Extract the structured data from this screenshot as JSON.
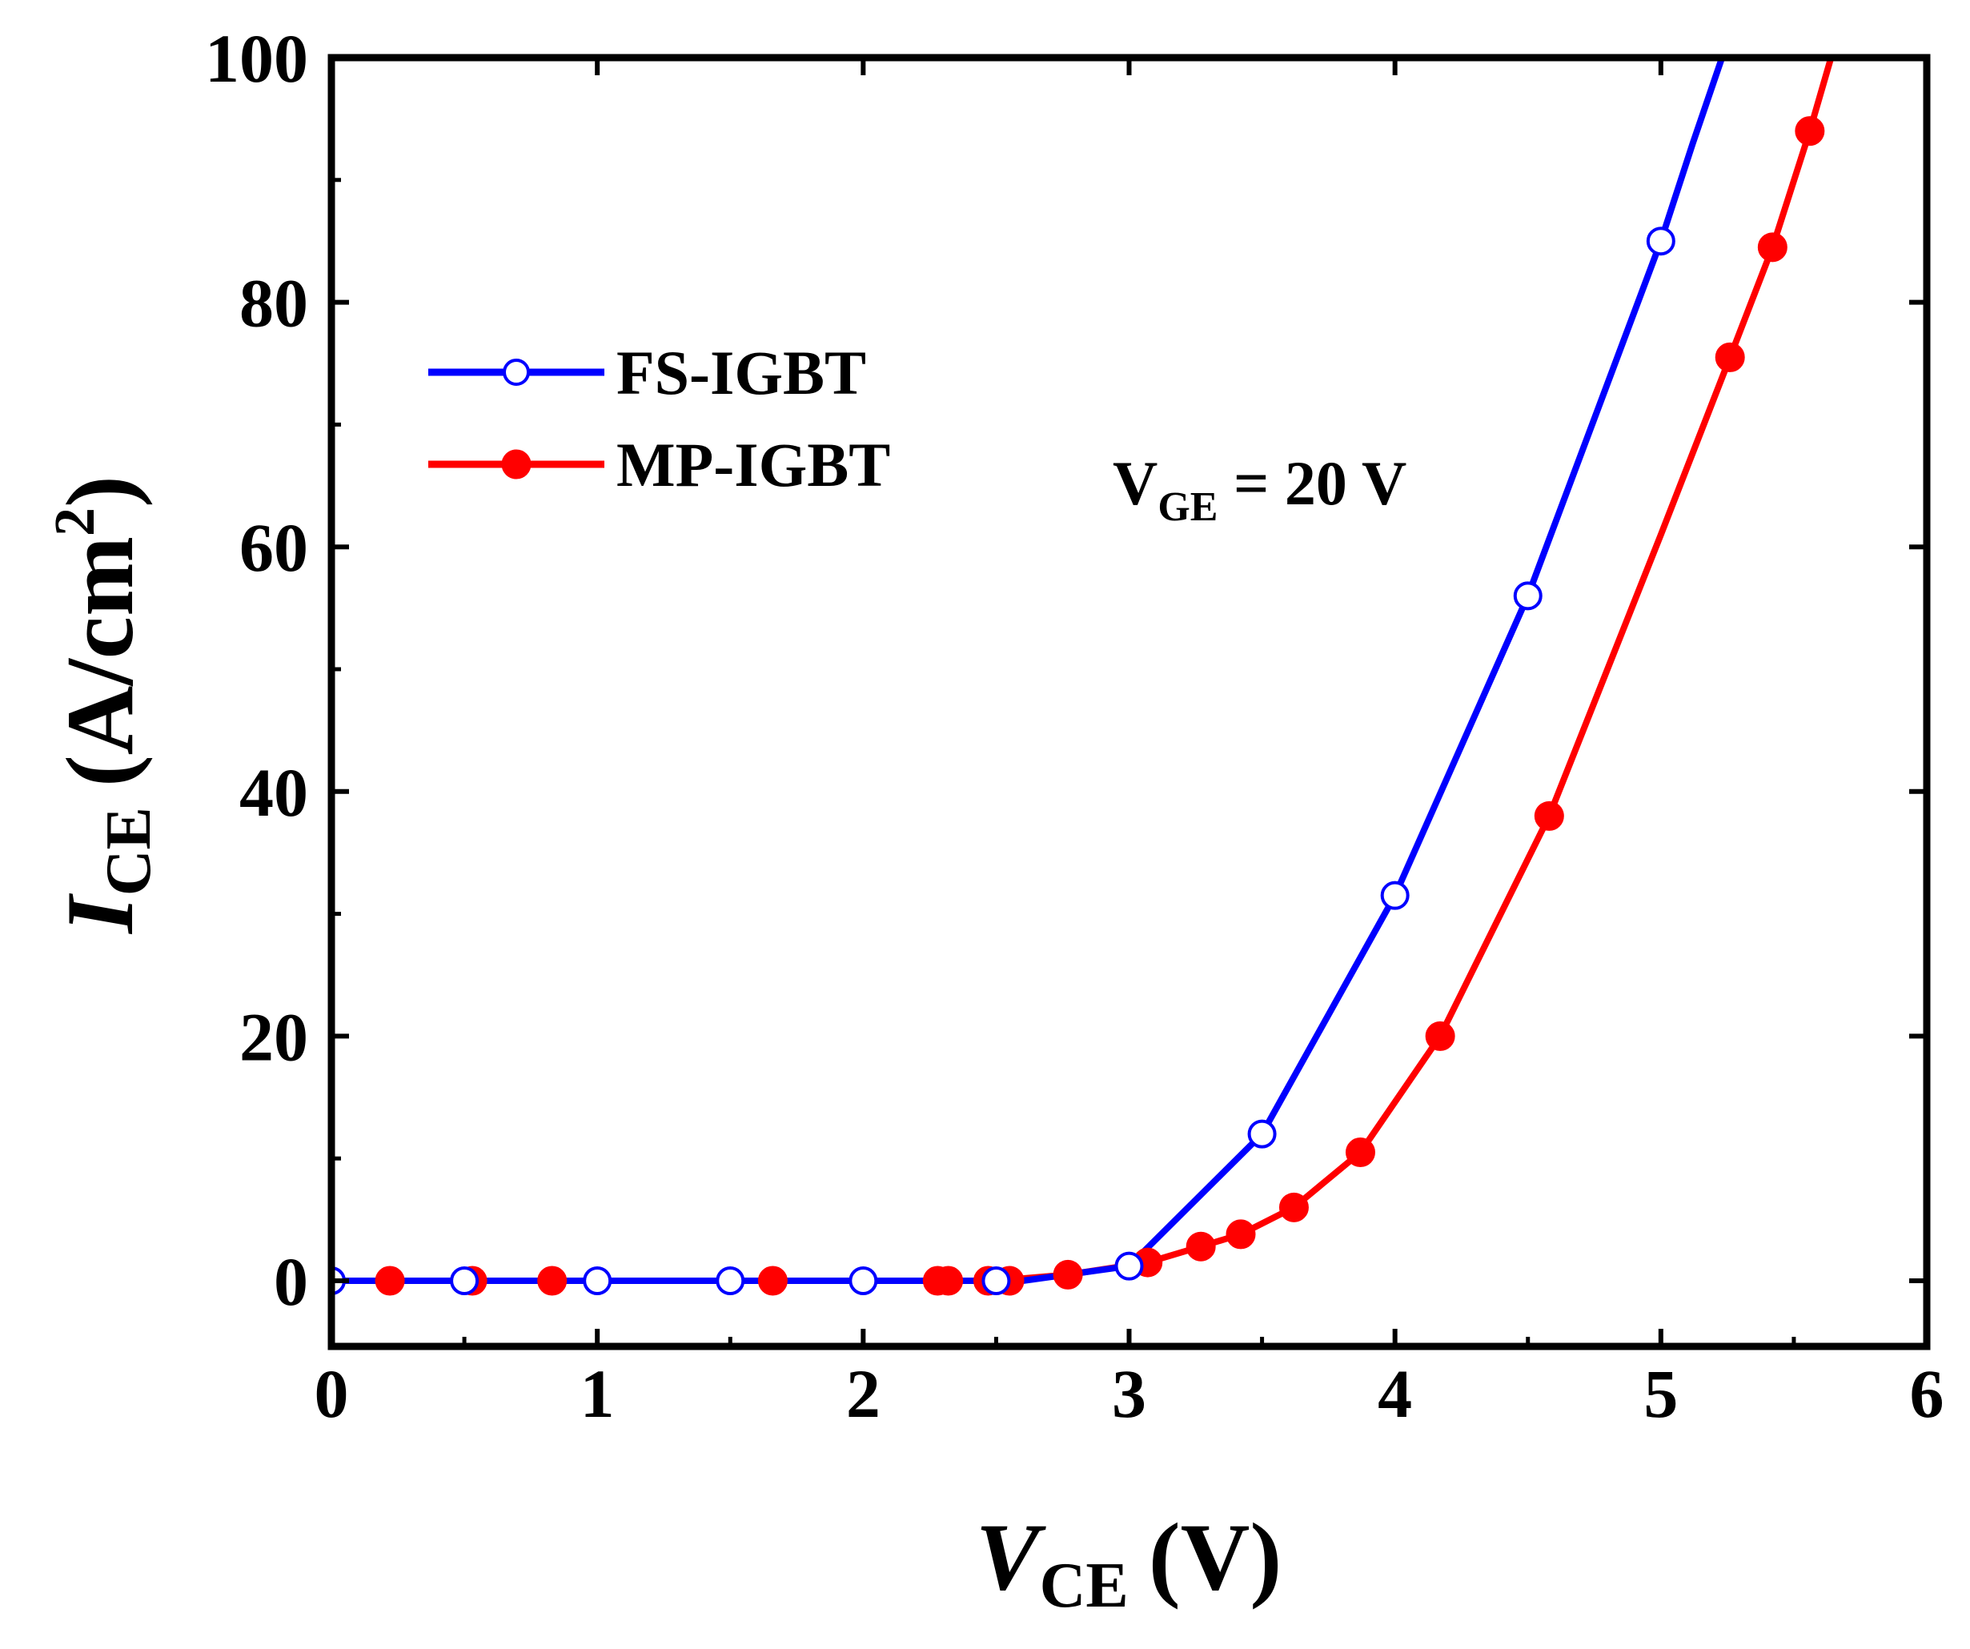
{
  "chart_data": {
    "type": "line",
    "title": "",
    "xlabel": {
      "main": "V",
      "sub": "CE",
      "unit": "(V)"
    },
    "ylabel": {
      "main": "I",
      "sub": "CE",
      "unit_prefix": "(A/cm",
      "unit_sup": "2",
      "unit_suffix": ")"
    },
    "xlim": [
      0,
      6
    ],
    "ylim": [
      -5,
      100
    ],
    "xticks": [
      0,
      1,
      2,
      3,
      4,
      5,
      6
    ],
    "yticks": [
      0,
      20,
      40,
      60,
      80,
      100
    ],
    "grid": false,
    "legend_position": "upper-left",
    "annotation": {
      "prefix": "V",
      "sub": "GE",
      "suffix": " = 20 V"
    },
    "series": [
      {
        "name": "FS-IGBT",
        "color": "#0000ff",
        "marker": "open-circle",
        "line": [
          [
            0,
            0
          ],
          [
            2.6,
            0
          ],
          [
            3,
            1.2
          ],
          [
            3.5,
            12
          ],
          [
            4,
            31.5
          ],
          [
            4.5,
            56
          ],
          [
            5,
            85
          ],
          [
            5.12,
            93
          ],
          [
            5.23,
            100
          ]
        ],
        "markers": [
          [
            0,
            0
          ],
          [
            0.5,
            0
          ],
          [
            1,
            0
          ],
          [
            1.5,
            0
          ],
          [
            2,
            0
          ],
          [
            2.5,
            0
          ],
          [
            3,
            1.2
          ],
          [
            3.5,
            12
          ],
          [
            4,
            31.5
          ],
          [
            4.5,
            56
          ],
          [
            5,
            85
          ]
        ]
      },
      {
        "name": "MP-IGBT",
        "color": "#ff0000",
        "marker": "filled-circle",
        "line": [
          [
            0,
            0
          ],
          [
            2.5,
            0
          ],
          [
            2.77,
            0.5
          ],
          [
            3.07,
            1.5
          ],
          [
            3.27,
            2.8
          ],
          [
            3.42,
            3.8
          ],
          [
            3.62,
            6
          ],
          [
            3.87,
            10.5
          ],
          [
            4.17,
            20
          ],
          [
            4.58,
            38
          ],
          [
            5,
            61
          ],
          [
            5.26,
            75.5
          ],
          [
            5.42,
            84.5
          ],
          [
            5.56,
            94
          ],
          [
            5.64,
            100
          ]
        ],
        "markers": [
          [
            0.22,
            0
          ],
          [
            0.53,
            0
          ],
          [
            0.83,
            0
          ],
          [
            1.66,
            0
          ],
          [
            2.28,
            0
          ],
          [
            2.32,
            0
          ],
          [
            2.47,
            0
          ],
          [
            2.55,
            0
          ],
          [
            2.77,
            0.5
          ],
          [
            3.07,
            1.5
          ],
          [
            3.27,
            2.8
          ],
          [
            3.42,
            3.8
          ],
          [
            3.62,
            6
          ],
          [
            3.87,
            10.5
          ],
          [
            4.17,
            20
          ],
          [
            4.58,
            38
          ],
          [
            5.26,
            75.5
          ],
          [
            5.42,
            84.5
          ],
          [
            5.56,
            94
          ]
        ]
      }
    ]
  }
}
